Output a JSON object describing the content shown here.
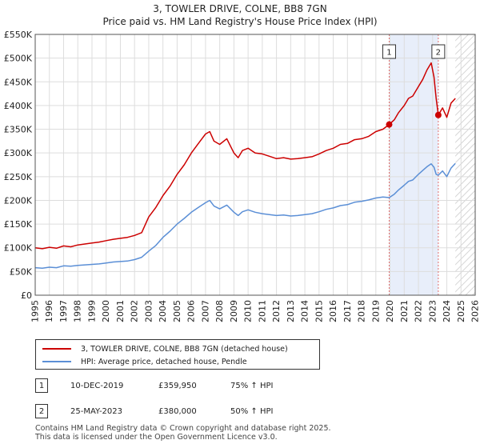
{
  "chart_data": {
    "type": "line",
    "title": "3, TOWLER DRIVE, COLNE, BB8 7GN",
    "subtitle": "Price paid vs. HM Land Registry's House Price Index (HPI)",
    "xlim": [
      1995,
      2026
    ],
    "ylim": [
      0,
      550000
    ],
    "y_ticks": [
      0,
      50000,
      100000,
      150000,
      200000,
      250000,
      300000,
      350000,
      400000,
      450000,
      500000,
      550000
    ],
    "y_tick_labels": [
      "£0",
      "£50K",
      "£100K",
      "£150K",
      "£200K",
      "£250K",
      "£300K",
      "£350K",
      "£400K",
      "£450K",
      "£500K",
      "£550K"
    ],
    "x_ticks": [
      1995,
      1996,
      1997,
      1998,
      1999,
      2000,
      2001,
      2002,
      2003,
      2004,
      2005,
      2006,
      2007,
      2008,
      2009,
      2010,
      2011,
      2012,
      2013,
      2014,
      2015,
      2016,
      2017,
      2018,
      2019,
      2020,
      2021,
      2022,
      2023,
      2024,
      2025,
      2026
    ],
    "x_tick_labels": [
      "1995",
      "1996",
      "1997",
      "1998",
      "1999",
      "2000",
      "2001",
      "2002",
      "2003",
      "2004",
      "2005",
      "2006",
      "2007",
      "2008",
      "2009",
      "2010",
      "2011",
      "2012",
      "2013",
      "2014",
      "2015",
      "2016",
      "2017",
      "2018",
      "2019",
      "2020",
      "2021",
      "2022",
      "2023",
      "2024",
      "2025",
      "2026"
    ],
    "grid": true,
    "shaded_period": [
      2019.94,
      2023.4
    ],
    "data_end": 2024.6,
    "series": [
      {
        "name": "3, TOWLER DRIVE, COLNE, BB8 7GN (detached house)",
        "color": "#cc0000",
        "x": [
          1995,
          1995.5,
          1996,
          1996.5,
          1997,
          1997.5,
          1998,
          1998.5,
          1999,
          1999.5,
          2000,
          2000.5,
          2001,
          2001.5,
          2002,
          2002.5,
          2003,
          2003.5,
          2004,
          2004.5,
          2005,
          2005.5,
          2006,
          2006.5,
          2007,
          2007.3,
          2007.6,
          2008,
          2008.5,
          2009,
          2009.3,
          2009.6,
          2010,
          2010.5,
          2011,
          2011.5,
          2012,
          2012.5,
          2013,
          2013.5,
          2014,
          2014.5,
          2015,
          2015.5,
          2016,
          2016.5,
          2017,
          2017.5,
          2018,
          2018.5,
          2019,
          2019.5,
          2019.94,
          2020.3,
          2020.6,
          2021,
          2021.3,
          2021.6,
          2022,
          2022.3,
          2022.6,
          2022.9,
          2023.1,
          2023.25,
          2023.4,
          2023.7,
          2024,
          2024.3,
          2024.6
        ],
        "values": [
          100000,
          98000,
          101000,
          99000,
          104000,
          102000,
          106000,
          108000,
          110000,
          112000,
          115000,
          118000,
          120000,
          122000,
          126000,
          132000,
          165000,
          185000,
          210000,
          230000,
          255000,
          275000,
          300000,
          320000,
          340000,
          345000,
          325000,
          318000,
          330000,
          300000,
          290000,
          305000,
          310000,
          300000,
          298000,
          293000,
          288000,
          290000,
          287000,
          288000,
          290000,
          292000,
          298000,
          305000,
          310000,
          318000,
          320000,
          328000,
          330000,
          335000,
          345000,
          350000,
          359950,
          370000,
          385000,
          400000,
          415000,
          420000,
          440000,
          455000,
          475000,
          490000,
          460000,
          415000,
          380000,
          395000,
          375000,
          405000,
          415000
        ]
      },
      {
        "name": "HPI: Average price, detached house, Pendle",
        "color": "#5b8fd6",
        "x": [
          1995,
          1995.5,
          1996,
          1996.5,
          1997,
          1997.5,
          1998,
          1998.5,
          1999,
          1999.5,
          2000,
          2000.5,
          2001,
          2001.5,
          2002,
          2002.5,
          2003,
          2003.5,
          2004,
          2004.5,
          2005,
          2005.5,
          2006,
          2006.5,
          2007,
          2007.3,
          2007.6,
          2008,
          2008.5,
          2009,
          2009.3,
          2009.6,
          2010,
          2010.5,
          2011,
          2011.5,
          2012,
          2012.5,
          2013,
          2013.5,
          2014,
          2014.5,
          2015,
          2015.5,
          2016,
          2016.5,
          2017,
          2017.5,
          2018,
          2018.5,
          2019,
          2019.5,
          2019.94,
          2020.3,
          2020.6,
          2021,
          2021.3,
          2021.6,
          2022,
          2022.3,
          2022.6,
          2022.9,
          2023.1,
          2023.25,
          2023.4,
          2023.7,
          2024,
          2024.3,
          2024.6
        ],
        "values": [
          58000,
          57000,
          59000,
          58000,
          62000,
          61000,
          63000,
          64000,
          65000,
          66000,
          68000,
          70000,
          71000,
          72000,
          75000,
          80000,
          93000,
          105000,
          122000,
          135000,
          150000,
          162000,
          175000,
          185000,
          195000,
          200000,
          188000,
          182000,
          190000,
          175000,
          168000,
          176000,
          180000,
          175000,
          172000,
          170000,
          168000,
          169000,
          167000,
          168000,
          170000,
          172000,
          176000,
          181000,
          184000,
          189000,
          191000,
          196000,
          198000,
          201000,
          205000,
          207000,
          205800,
          213000,
          222000,
          232000,
          240000,
          243000,
          255000,
          263000,
          271000,
          277000,
          270000,
          255000,
          253000,
          262000,
          250000,
          268000,
          278000
        ]
      }
    ],
    "markers": [
      {
        "label": "1",
        "x": 2019.94,
        "y": 359950
      },
      {
        "label": "2",
        "x": 2023.4,
        "y": 380000
      }
    ]
  },
  "legend": {
    "property_label": "3, TOWLER DRIVE, COLNE, BB8 7GN (detached house)",
    "hpi_label": "HPI: Average price, detached house, Pendle",
    "property_color": "#cc0000",
    "hpi_color": "#5b8fd6"
  },
  "transactions": [
    {
      "num": "1",
      "date": "10-DEC-2019",
      "price": "£359,950",
      "hpi": "75% ↑ HPI"
    },
    {
      "num": "2",
      "date": "25-MAY-2023",
      "price": "£380,000",
      "hpi": "50% ↑ HPI"
    }
  ],
  "footer": {
    "line1": "Contains HM Land Registry data © Crown copyright and database right 2025.",
    "line2": "This data is licensed under the Open Government Licence v3.0."
  }
}
